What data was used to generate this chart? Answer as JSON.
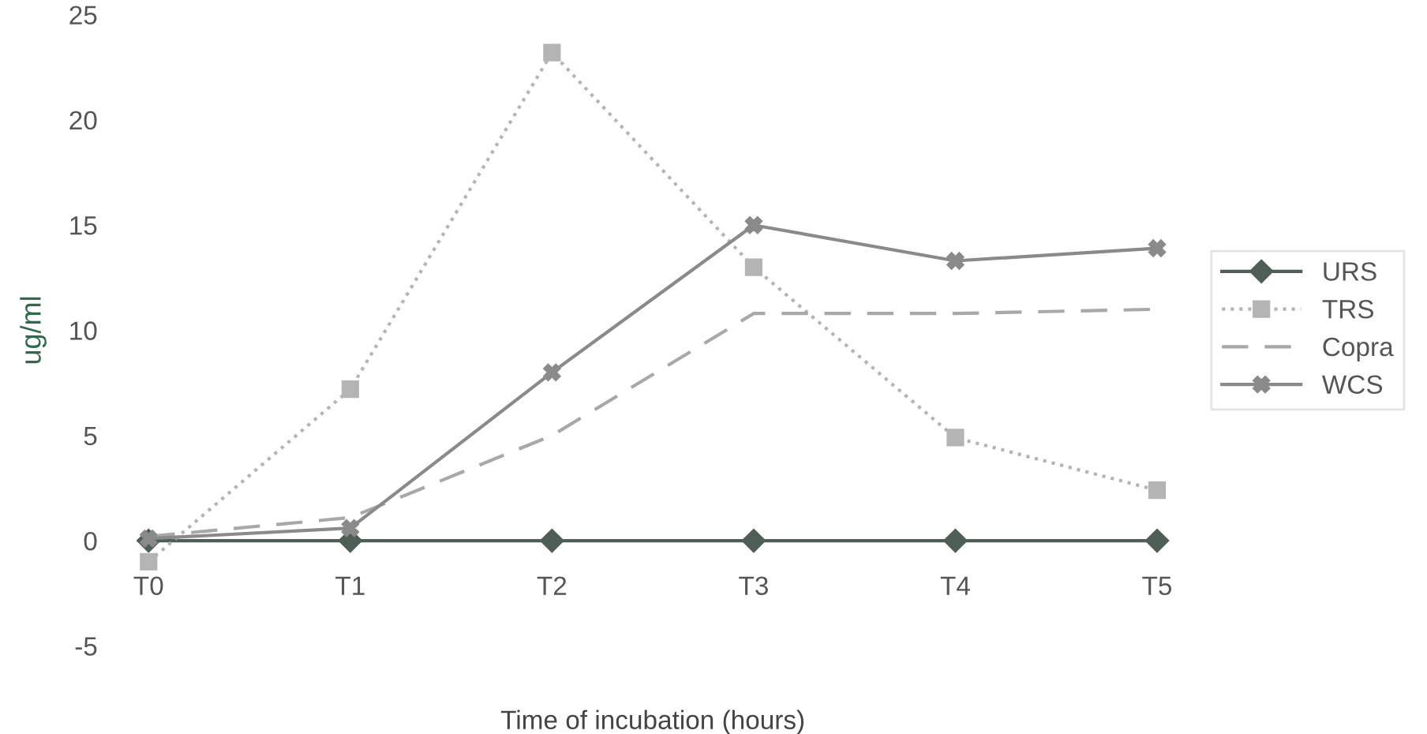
{
  "chart_data": {
    "type": "line",
    "xlabel": "Time of incubation (hours)",
    "ylabel": "ug/ml",
    "categories": [
      "T0",
      "T1",
      "T2",
      "T3",
      "T4",
      "T5"
    ],
    "series": [
      {
        "name": "URS",
        "color": "#4f5f55",
        "marker": "diamond",
        "line_style": "solid",
        "values": [
          0,
          0,
          0,
          0,
          0,
          0
        ]
      },
      {
        "name": "TRS",
        "color": "#b4b4b4",
        "marker": "square",
        "line_style": "dotted",
        "values": [
          -1,
          7.2,
          23.2,
          13,
          4.9,
          2.4
        ]
      },
      {
        "name": "Copra",
        "color": "#a8a8a8",
        "marker": "none",
        "line_style": "dashed",
        "values": [
          0.2,
          1.1,
          5,
          10.8,
          10.8,
          11
        ]
      },
      {
        "name": "WCS",
        "color": "#8a8a8a",
        "marker": "cross",
        "line_style": "solid",
        "values": [
          0.1,
          0.6,
          8,
          15,
          13.3,
          13.9
        ]
      }
    ],
    "ylim": [
      -5,
      25
    ],
    "yticks": [
      -5,
      0,
      5,
      10,
      15,
      20,
      25
    ],
    "grid": false,
    "legend": "right"
  }
}
